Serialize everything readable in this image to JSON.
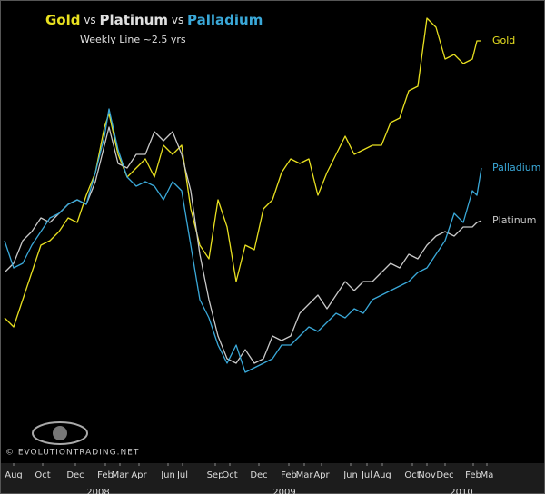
{
  "chart_data": {
    "type": "line",
    "title_parts": [
      "Gold",
      " vs ",
      "Platinum",
      " vs ",
      "Palladium"
    ],
    "subtitle": "Weekly Line ~2.5 yrs",
    "watermark": "© EVOLUTIONTRADING.NET",
    "x": [
      5,
      15,
      25,
      35,
      45,
      55,
      65,
      75,
      85,
      95,
      105,
      115,
      120,
      130,
      140,
      150,
      160,
      170,
      180,
      190,
      200,
      210,
      220,
      230,
      240,
      250,
      260,
      270,
      280,
      290,
      300,
      310,
      320,
      330,
      340,
      350,
      360,
      370,
      380,
      390,
      400,
      410,
      420,
      430,
      440,
      450,
      460,
      470,
      480,
      490,
      500,
      510,
      520,
      525,
      530
    ],
    "xlim": [
      0,
      600
    ],
    "ylim": [
      0,
      510
    ],
    "xticks": [
      {
        "value": 15,
        "label": "Aug"
      },
      {
        "value": 47,
        "label": "Oct"
      },
      {
        "value": 83,
        "label": "Dec"
      },
      {
        "value": 116,
        "label": "Feb"
      },
      {
        "value": 132,
        "label": "Mar"
      },
      {
        "value": 153,
        "label": "Apr"
      },
      {
        "value": 185,
        "label": "Jun"
      },
      {
        "value": 201,
        "label": "Jul"
      },
      {
        "value": 237,
        "label": "Sep"
      },
      {
        "value": 253,
        "label": "Oct"
      },
      {
        "value": 285,
        "label": "Dec"
      },
      {
        "value": 318,
        "label": "Feb"
      },
      {
        "value": 335,
        "label": "Mar"
      },
      {
        "value": 354,
        "label": "Apr"
      },
      {
        "value": 386,
        "label": "Jun"
      },
      {
        "value": 404,
        "label": "Jul"
      },
      {
        "value": 421,
        "label": "Aug"
      },
      {
        "value": 454,
        "label": "Oct"
      },
      {
        "value": 470,
        "label": "Nov"
      },
      {
        "value": 490,
        "label": "Dec"
      },
      {
        "value": 521,
        "label": "Feb"
      },
      {
        "value": 536,
        "label": "Ma"
      }
    ],
    "x_year_labels": [
      {
        "value": 108,
        "label": "2008"
      },
      {
        "value": 313,
        "label": "2009"
      },
      {
        "value": 508,
        "label": "2010"
      }
    ],
    "series": [
      {
        "name": "Gold",
        "color": "#e8e020",
        "values": [
          160,
          150,
          180,
          210,
          240,
          245,
          255,
          270,
          265,
          295,
          320,
          370,
          385,
          340,
          315,
          325,
          335,
          315,
          350,
          340,
          350,
          280,
          240,
          225,
          290,
          260,
          200,
          240,
          235,
          280,
          290,
          320,
          335,
          330,
          335,
          295,
          320,
          340,
          360,
          340,
          345,
          350,
          350,
          375,
          380,
          410,
          415,
          490,
          480,
          445,
          450,
          440,
          445,
          465,
          465
        ]
      },
      {
        "name": "Platinum",
        "color": "#c8c8c8",
        "values": [
          210,
          220,
          245,
          255,
          270,
          265,
          275,
          285,
          290,
          285,
          310,
          350,
          370,
          330,
          325,
          340,
          340,
          365,
          355,
          365,
          340,
          300,
          230,
          180,
          140,
          115,
          110,
          125,
          110,
          115,
          140,
          135,
          140,
          165,
          175,
          185,
          170,
          185,
          200,
          190,
          200,
          200,
          210,
          220,
          215,
          230,
          225,
          240,
          250,
          255,
          250,
          260,
          260,
          265,
          267
        ]
      },
      {
        "name": "Palladium",
        "color": "#3aa8d8",
        "values": [
          245,
          215,
          220,
          240,
          255,
          270,
          275,
          285,
          290,
          285,
          320,
          360,
          390,
          345,
          315,
          305,
          310,
          305,
          290,
          310,
          300,
          240,
          180,
          160,
          130,
          110,
          130,
          100,
          105,
          110,
          115,
          130,
          130,
          140,
          150,
          145,
          155,
          165,
          160,
          170,
          165,
          180,
          185,
          190,
          195,
          200,
          210,
          215,
          230,
          245,
          275,
          265,
          300,
          295,
          325
        ]
      }
    ]
  }
}
